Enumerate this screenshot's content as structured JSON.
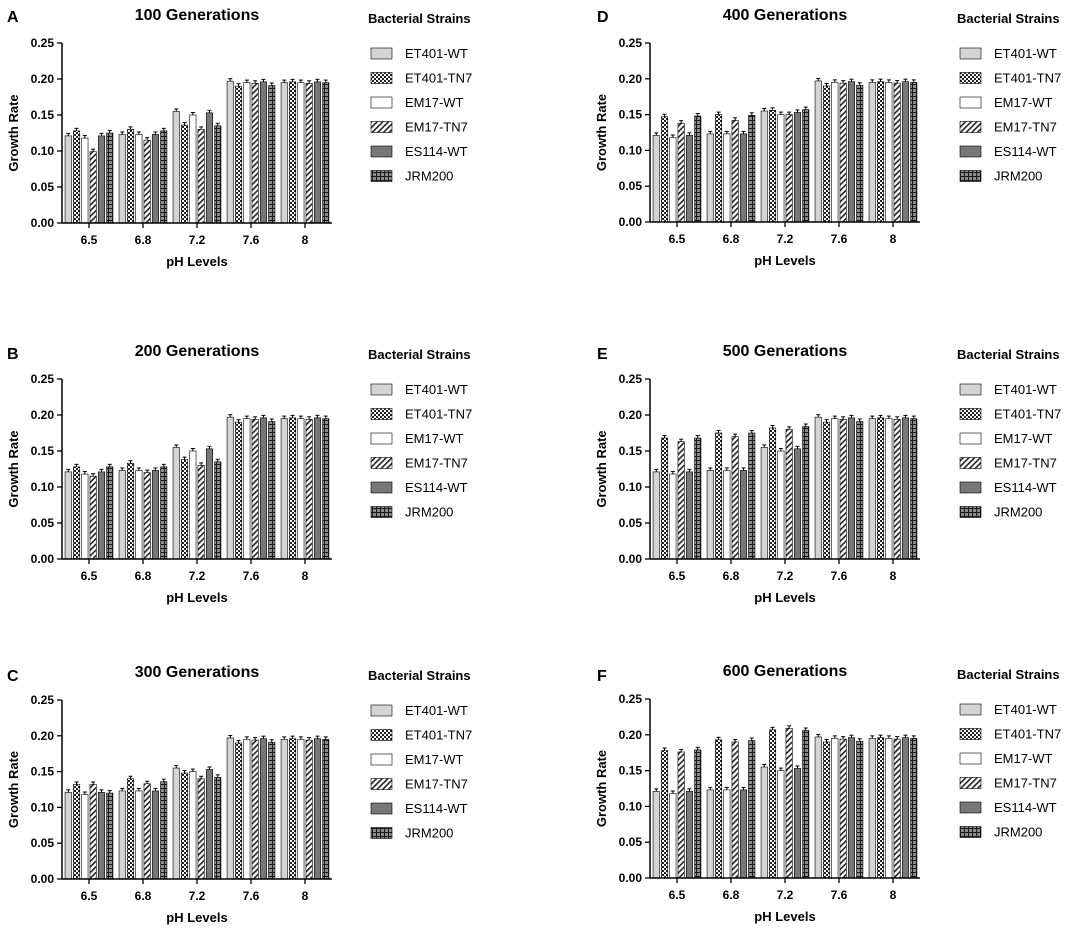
{
  "figure": {
    "legend_title": "Bacterial Strains",
    "strains": [
      "ET401-WT",
      "ET401-TN7",
      "EM17-WT",
      "EM17-TN7",
      "ES114-WT",
      "JRM200"
    ],
    "strain_patterns": [
      "light-gray",
      "checker",
      "white",
      "diagonal-hatch",
      "dark-gray",
      "grid"
    ]
  },
  "chart_data": [
    {
      "panel_label": "A",
      "type": "bar",
      "title": "100 Generations",
      "xlabel": "pH Levels",
      "ylabel": "Growth Rate",
      "categories": [
        "6.5",
        "6.8",
        "7.2",
        "7.6",
        "8"
      ],
      "ylim": [
        0,
        0.25
      ],
      "yticks": [
        "0.00",
        "0.05",
        "0.10",
        "0.15",
        "0.20",
        "0.25"
      ],
      "series": [
        {
          "name": "ET401-WT",
          "values": [
            0.121,
            0.123,
            0.155,
            0.197,
            0.195
          ]
        },
        {
          "name": "ET401-TN7",
          "values": [
            0.128,
            0.13,
            0.136,
            0.19,
            0.196
          ]
        },
        {
          "name": "EM17-WT",
          "values": [
            0.118,
            0.123,
            0.15,
            0.195,
            0.195
          ]
        },
        {
          "name": "EM17-TN7",
          "values": [
            0.099,
            0.115,
            0.13,
            0.194,
            0.194
          ]
        },
        {
          "name": "ES114-WT",
          "values": [
            0.121,
            0.123,
            0.153,
            0.196,
            0.196
          ]
        },
        {
          "name": "JRM200",
          "values": [
            0.125,
            0.128,
            0.135,
            0.191,
            0.195
          ]
        }
      ]
    },
    {
      "panel_label": "B",
      "type": "bar",
      "title": "200 Generations",
      "xlabel": "pH Levels",
      "ylabel": "Growth Rate",
      "categories": [
        "6.5",
        "6.8",
        "7.2",
        "7.6",
        "8"
      ],
      "ylim": [
        0,
        0.25
      ],
      "yticks": [
        "0.00",
        "0.05",
        "0.10",
        "0.15",
        "0.20",
        "0.25"
      ],
      "series": [
        {
          "name": "ET401-WT",
          "values": [
            0.121,
            0.123,
            0.155,
            0.197,
            0.195
          ]
        },
        {
          "name": "ET401-TN7",
          "values": [
            0.128,
            0.133,
            0.138,
            0.19,
            0.196
          ]
        },
        {
          "name": "EM17-WT",
          "values": [
            0.118,
            0.123,
            0.15,
            0.195,
            0.195
          ]
        },
        {
          "name": "EM17-TN7",
          "values": [
            0.115,
            0.12,
            0.13,
            0.194,
            0.194
          ]
        },
        {
          "name": "ES114-WT",
          "values": [
            0.121,
            0.123,
            0.153,
            0.196,
            0.196
          ]
        },
        {
          "name": "JRM200",
          "values": [
            0.128,
            0.128,
            0.135,
            0.191,
            0.195
          ]
        }
      ]
    },
    {
      "panel_label": "C",
      "type": "bar",
      "title": "300 Generations",
      "xlabel": "pH Levels",
      "ylabel": "Growth Rate",
      "categories": [
        "6.5",
        "6.8",
        "7.2",
        "7.6",
        "8"
      ],
      "ylim": [
        0,
        0.25
      ],
      "yticks": [
        "0.00",
        "0.05",
        "0.10",
        "0.15",
        "0.20",
        "0.25"
      ],
      "series": [
        {
          "name": "ET401-WT",
          "values": [
            0.121,
            0.123,
            0.155,
            0.197,
            0.195
          ]
        },
        {
          "name": "ET401-TN7",
          "values": [
            0.132,
            0.14,
            0.148,
            0.19,
            0.196
          ]
        },
        {
          "name": "EM17-WT",
          "values": [
            0.118,
            0.123,
            0.15,
            0.195,
            0.195
          ]
        },
        {
          "name": "EM17-TN7",
          "values": [
            0.132,
            0.133,
            0.14,
            0.194,
            0.194
          ]
        },
        {
          "name": "ES114-WT",
          "values": [
            0.121,
            0.123,
            0.153,
            0.196,
            0.196
          ]
        },
        {
          "name": "JRM200",
          "values": [
            0.12,
            0.136,
            0.142,
            0.191,
            0.195
          ]
        }
      ]
    },
    {
      "panel_label": "D",
      "type": "bar",
      "title": "400 Generations",
      "xlabel": "pH Levels",
      "ylabel": "Growth Rate",
      "categories": [
        "6.5",
        "6.8",
        "7.2",
        "7.6",
        "8"
      ],
      "ylim": [
        0,
        0.25
      ],
      "yticks": [
        "0.00",
        "0.05",
        "0.10",
        "0.15",
        "0.20",
        "0.25"
      ],
      "series": [
        {
          "name": "ET401-WT",
          "values": [
            0.121,
            0.123,
            0.155,
            0.197,
            0.195
          ]
        },
        {
          "name": "ET401-TN7",
          "values": [
            0.147,
            0.15,
            0.156,
            0.19,
            0.196
          ]
        },
        {
          "name": "EM17-WT",
          "values": [
            0.118,
            0.123,
            0.15,
            0.195,
            0.195
          ]
        },
        {
          "name": "EM17-TN7",
          "values": [
            0.138,
            0.142,
            0.15,
            0.194,
            0.194
          ]
        },
        {
          "name": "ES114-WT",
          "values": [
            0.121,
            0.123,
            0.153,
            0.196,
            0.196
          ]
        },
        {
          "name": "JRM200",
          "values": [
            0.148,
            0.149,
            0.157,
            0.191,
            0.195
          ]
        }
      ]
    },
    {
      "panel_label": "E",
      "type": "bar",
      "title": "500 Generations",
      "xlabel": "pH Levels",
      "ylabel": "Growth Rate",
      "categories": [
        "6.5",
        "6.8",
        "7.2",
        "7.6",
        "8"
      ],
      "ylim": [
        0,
        0.25
      ],
      "yticks": [
        "0.00",
        "0.05",
        "0.10",
        "0.15",
        "0.20",
        "0.25"
      ],
      "series": [
        {
          "name": "ET401-WT",
          "values": [
            0.121,
            0.123,
            0.155,
            0.197,
            0.195
          ]
        },
        {
          "name": "ET401-TN7",
          "values": [
            0.168,
            0.175,
            0.182,
            0.19,
            0.196
          ]
        },
        {
          "name": "EM17-WT",
          "values": [
            0.118,
            0.123,
            0.15,
            0.195,
            0.195
          ]
        },
        {
          "name": "EM17-TN7",
          "values": [
            0.163,
            0.17,
            0.18,
            0.194,
            0.194
          ]
        },
        {
          "name": "ES114-WT",
          "values": [
            0.121,
            0.123,
            0.153,
            0.196,
            0.196
          ]
        },
        {
          "name": "JRM200",
          "values": [
            0.168,
            0.175,
            0.184,
            0.191,
            0.195
          ]
        }
      ]
    },
    {
      "panel_label": "F",
      "type": "bar",
      "title": "600 Generations",
      "xlabel": "pH Levels",
      "ylabel": "Growth Rate",
      "categories": [
        "6.5",
        "6.8",
        "7.2",
        "7.6",
        "8"
      ],
      "ylim": [
        0,
        0.25
      ],
      "yticks": [
        "0.00",
        "0.05",
        "0.10",
        "0.15",
        "0.20",
        "0.25"
      ],
      "series": [
        {
          "name": "ET401-WT",
          "values": [
            0.121,
            0.123,
            0.155,
            0.197,
            0.195
          ]
        },
        {
          "name": "ET401-TN7",
          "values": [
            0.178,
            0.193,
            0.207,
            0.19,
            0.196
          ]
        },
        {
          "name": "EM17-WT",
          "values": [
            0.118,
            0.123,
            0.15,
            0.195,
            0.195
          ]
        },
        {
          "name": "EM17-TN7",
          "values": [
            0.176,
            0.19,
            0.209,
            0.194,
            0.194
          ]
        },
        {
          "name": "ES114-WT",
          "values": [
            0.121,
            0.123,
            0.153,
            0.196,
            0.196
          ]
        },
        {
          "name": "JRM200",
          "values": [
            0.179,
            0.192,
            0.206,
            0.191,
            0.195
          ]
        }
      ]
    }
  ]
}
